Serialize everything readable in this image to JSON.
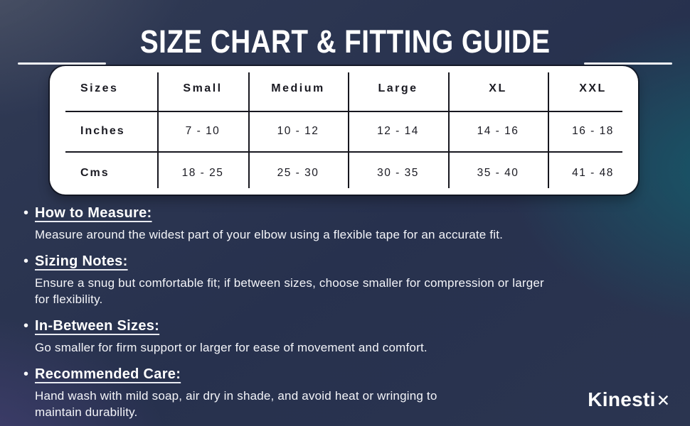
{
  "title": "SIZE CHART & FITTING GUIDE",
  "bullet": "•",
  "size_table": {
    "columns": [
      "Sizes",
      "Small",
      "Medium",
      "Large",
      "XL",
      "XXL"
    ],
    "rows": [
      {
        "label": "Inches",
        "values": [
          "7 - 10",
          "10 - 12",
          "12 - 14",
          "14 - 16",
          "16 - 18"
        ]
      },
      {
        "label": "Cms",
        "values": [
          "18 - 25",
          "25 - 30",
          "30 - 35",
          "35 - 40",
          "41 - 48"
        ]
      }
    ]
  },
  "notes": [
    {
      "heading": "How to Measure:",
      "body": "Measure around the widest part of your elbow using a flexible tape for an accurate fit."
    },
    {
      "heading": "Sizing Notes:",
      "body": "Ensure a snug but comfortable fit; if between sizes, choose smaller for compression or larger\nfor flexibility."
    },
    {
      "heading": "In-Between Sizes:",
      "body": "Go smaller for firm support or larger for ease of movement and comfort."
    },
    {
      "heading": "Recommended Care:",
      "body": "Hand wash with mild soap, air dry in shade, and avoid heat or wringing to\nmaintain durability."
    }
  ],
  "brand": {
    "name": "Kinesti",
    "x_glyph": "✕"
  },
  "colors": {
    "background_base": "#2a3450",
    "accent_teal": "#126270",
    "accent_purple": "#4c447d",
    "accent_gray": "#585e6e",
    "card_background": "#ffffff",
    "table_text": "#1a1a22",
    "body_text": "#ffffff"
  }
}
